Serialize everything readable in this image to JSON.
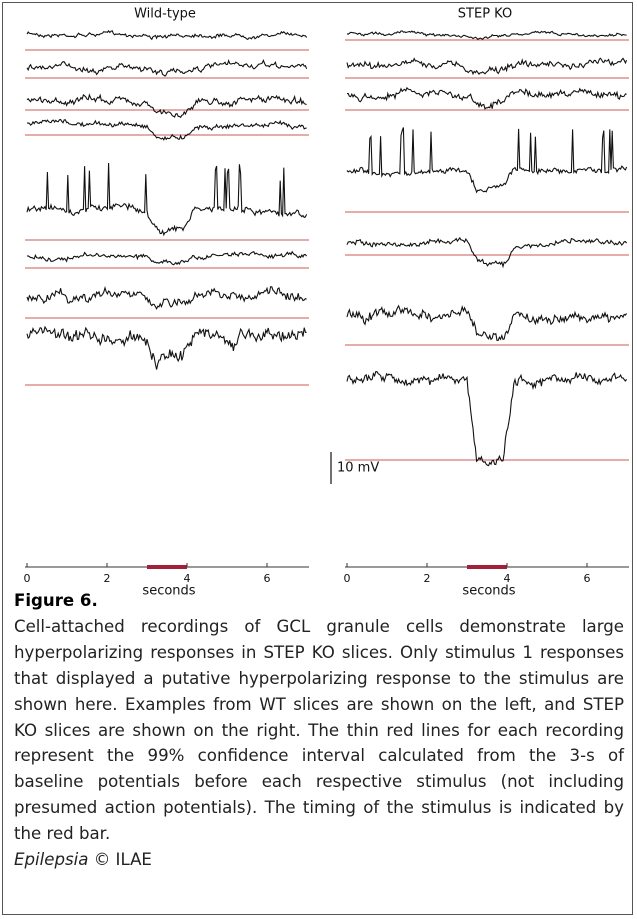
{
  "figure": {
    "panels": [
      {
        "title": "Wild-type",
        "xticks": [
          0,
          2,
          4,
          6
        ],
        "xlabel": "seconds"
      },
      {
        "title": "STEP KO",
        "xticks": [
          0,
          2,
          4,
          6
        ],
        "xlabel": "seconds"
      }
    ],
    "scale_bar": "10 mV"
  },
  "caption": {
    "title": "Figure 6.",
    "text": "Cell-attached recordings of GCL granule cells demonstrate large hyperpolarizing responses in STEP KO slices. Only stimulus 1 responses that displayed a putative hyperpolarizing response to the stimulus are shown here. Examples from WT slices are shown on the left, and STEP KO slices are shown on the right. The thin red lines for each recording represent the 99% confidence interval calculated from the 3-s of baseline potentials before each respective stimulus (not including presumed action potentials). The timing of the stimulus is indicated by the red bar.",
    "journal": "Epilepsia",
    "copyright": "© ILAE"
  }
}
